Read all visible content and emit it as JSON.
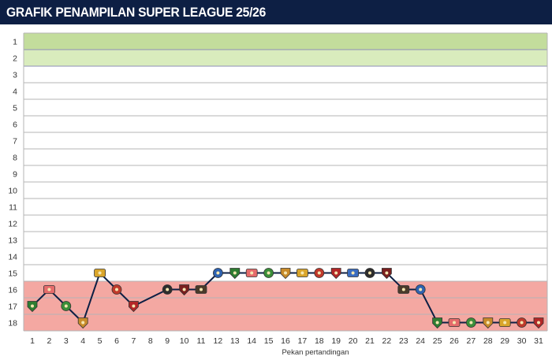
{
  "header": {
    "title": "GRAFIK PENAMPILAN SUPER LEAGUE 25/26"
  },
  "chart_data": {
    "type": "line",
    "title": "GRAFIK PENAMPILAN SUPER LEAGUE 25/26",
    "xlabel": "Pekan pertandingan",
    "ylabel": "",
    "x": [
      1,
      2,
      3,
      4,
      5,
      6,
      7,
      8,
      9,
      10,
      11,
      12,
      13,
      14,
      15,
      16,
      17,
      18,
      19,
      20,
      21,
      22,
      23,
      24,
      25,
      26,
      27,
      28,
      29,
      30,
      31
    ],
    "y_ticks": [
      1,
      2,
      3,
      4,
      5,
      6,
      7,
      8,
      9,
      10,
      11,
      12,
      13,
      14,
      15,
      16,
      17,
      18
    ],
    "ylim": [
      1,
      18
    ],
    "y_inverted": true,
    "series": [
      {
        "points": [
          {
            "x": 1,
            "y": 17
          },
          {
            "x": 2,
            "y": 16
          },
          {
            "x": 3,
            "y": 17
          },
          {
            "x": 4,
            "y": 18
          },
          {
            "x": 5,
            "y": 15
          },
          {
            "x": 6,
            "y": 16
          },
          {
            "x": 7,
            "y": 17
          },
          {
            "x": 9,
            "y": 16
          },
          {
            "x": 10,
            "y": 16
          },
          {
            "x": 11,
            "y": 16
          },
          {
            "x": 12,
            "y": 15
          },
          {
            "x": 13,
            "y": 15
          },
          {
            "x": 14,
            "y": 15
          },
          {
            "x": 15,
            "y": 15
          },
          {
            "x": 16,
            "y": 15
          },
          {
            "x": 17,
            "y": 15
          },
          {
            "x": 18,
            "y": 15
          },
          {
            "x": 19,
            "y": 15
          },
          {
            "x": 20,
            "y": 15
          },
          {
            "x": 21,
            "y": 15
          },
          {
            "x": 22,
            "y": 15
          },
          {
            "x": 23,
            "y": 16
          },
          {
            "x": 24,
            "y": 16
          },
          {
            "x": 25,
            "y": 18
          },
          {
            "x": 26,
            "y": 18
          },
          {
            "x": 27,
            "y": 18
          },
          {
            "x": 28,
            "y": 18
          },
          {
            "x": 29,
            "y": 18
          },
          {
            "x": 30,
            "y": 18
          },
          {
            "x": 31,
            "y": 18
          }
        ]
      }
    ],
    "bands": [
      {
        "from": 1,
        "to": 1,
        "color": "#c3dd9c"
      },
      {
        "from": 2,
        "to": 2,
        "color": "#d9ecbd"
      },
      {
        "from": 16,
        "to": 18,
        "color": "#f4a8a2"
      }
    ],
    "marker_colors": [
      "#2e62b0",
      "#b32727",
      "#e56b6b",
      "#2d2d2d",
      "#c98b2a",
      "#4a3a2a",
      "#c0392b",
      "#2f7d32",
      "#3a6cc0",
      "#3b8e3a",
      "#7a1f1f",
      "#d9a52b"
    ],
    "grid": true,
    "legend": "none"
  }
}
